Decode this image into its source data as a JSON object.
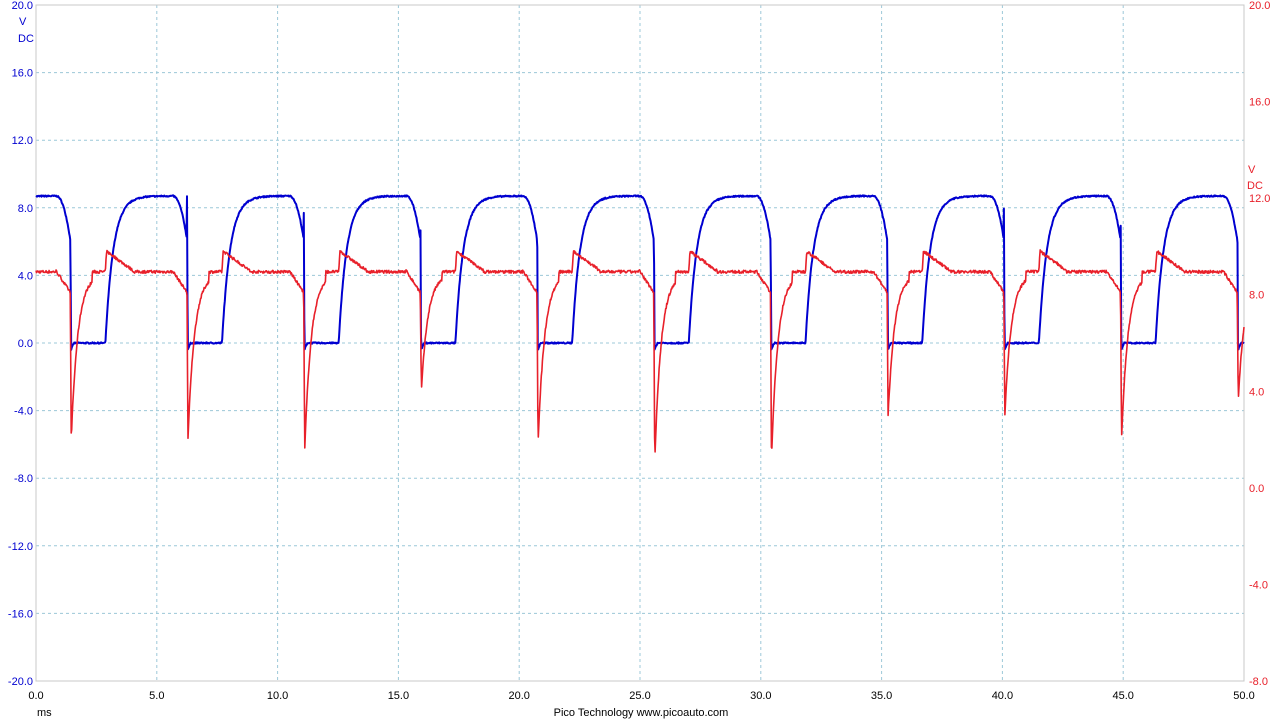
{
  "chart_data": {
    "type": "line",
    "title": "",
    "footer": "Pico Technology  www.picoauto.com",
    "grid": true,
    "x_axis": {
      "unit_label": "ms",
      "range": [
        0,
        50
      ],
      "ticks": [
        "0.0",
        "5.0",
        "10.0",
        "15.0",
        "20.0",
        "25.0",
        "30.0",
        "35.0",
        "40.0",
        "45.0",
        "50.0"
      ]
    },
    "left_axis": {
      "unit_label": "V",
      "coupling_label": "DC",
      "range": [
        -20,
        20
      ],
      "ticks": [
        "20.0",
        "16.0",
        "12.0",
        "8.0",
        "4.0",
        "0.0",
        "-4.0",
        "-8.0",
        "-12.0",
        "-16.0",
        "-20.0"
      ],
      "color": "#0000d0"
    },
    "right_axis": {
      "unit_label": "V",
      "coupling_label": "DC",
      "range": [
        -8,
        20
      ],
      "ticks": [
        "20.0",
        "16.0",
        "12.0",
        "8.0",
        "4.0",
        "0.0",
        "-4.0",
        "-8.0"
      ],
      "color": "#e8202a"
    },
    "channel_params": {
      "period_ms": 4.83,
      "first_fall_ms": 1.42,
      "channel_a": {
        "axis": "left",
        "high_v": 8.7,
        "low_v": 0.0,
        "off_time_ms": 1.45
      },
      "channel_b": {
        "axis": "right",
        "baseline_v": 8.0,
        "plateau_v": 9.0,
        "peak_v": 9.8,
        "spike_v": [
          2.0,
          2.0,
          1.5,
          4.0,
          1.8,
          1.1,
          1.2,
          3.0,
          3.0,
          2.0,
          3.6
        ]
      }
    },
    "series": [
      {
        "name": "",
        "axis": "left",
        "color": "#0000d0",
        "id": "channel_a"
      },
      {
        "name": "",
        "axis": "right",
        "color": "#e8202a",
        "id": "channel_b"
      }
    ]
  }
}
